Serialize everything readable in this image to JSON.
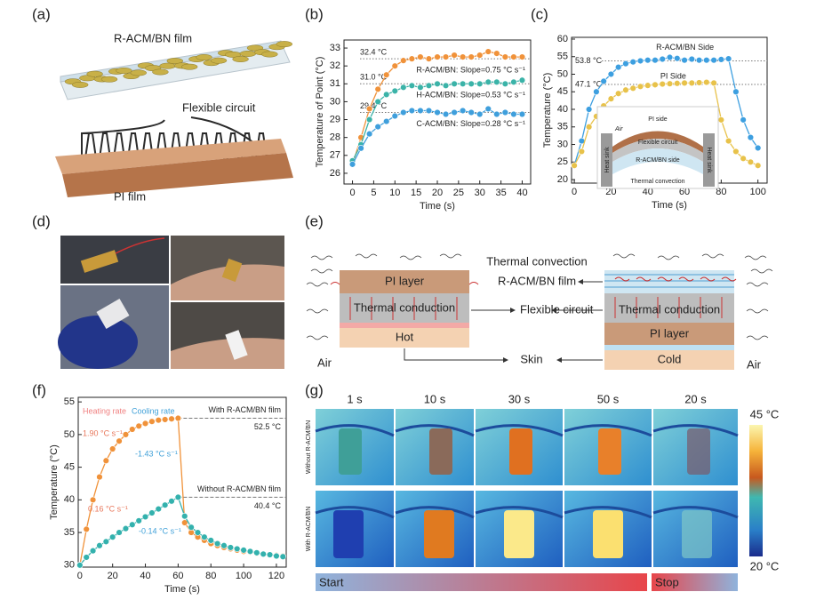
{
  "panels": {
    "labels": [
      "(a)",
      "(b)",
      "(c)",
      "(d)",
      "(e)",
      "(f)",
      "(g)"
    ],
    "a": {
      "film": "R-ACM/BN film",
      "circuit": "Flexible circuit",
      "pi": "PI film"
    },
    "c_inset": {
      "pi_side": "PI side",
      "air": "Air",
      "circuit": "Flexible circuit",
      "racm_side": "R-ACM/BN side",
      "sink_left": "Heat sink",
      "sink_right": "Heat sink",
      "convection": "Thermal convection"
    },
    "e": {
      "convection": "Thermal convection",
      "film": "R-ACM/BN film",
      "circuit": "Flexible circuit",
      "skin": "Skin",
      "left": {
        "layer": "PI layer",
        "conduction": "Thermal conduction",
        "base": "Hot",
        "air": "Air"
      },
      "right": {
        "layer": "PI layer",
        "conduction": "Thermal conduction",
        "base": "Cold",
        "air": "Air"
      }
    },
    "g": {
      "times": [
        "1 s",
        "10 s",
        "30 s",
        "50 s",
        "20 s"
      ],
      "rows": [
        "Without R-ACM/BN",
        "With R-ACM/BN"
      ],
      "max": "45 °C",
      "min": "20 °C",
      "start": "Start",
      "stop": "Stop"
    }
  },
  "chart_data": [
    {
      "type": "line",
      "xlabel": "Time (s)",
      "ylabel": "Temperature of Point (°C)",
      "x": [
        0,
        2,
        4,
        6,
        8,
        10,
        12,
        14,
        16,
        18,
        20,
        22,
        24,
        26,
        28,
        30,
        32,
        34,
        36,
        38,
        40
      ],
      "xlim": [
        -2,
        42
      ],
      "xticks": [
        0,
        5,
        10,
        15,
        20,
        25,
        30,
        35,
        40
      ],
      "ylim": [
        25.4,
        33.45
      ],
      "yticks": [
        26,
        27,
        28,
        29,
        30,
        31,
        32,
        33
      ],
      "series": [
        {
          "name": "R-ACM/BN: Slope=0.75 °C s⁻¹",
          "color": "#f0923a",
          "values": [
            26.5,
            28.0,
            29.6,
            30.7,
            31.5,
            32.0,
            32.3,
            32.4,
            32.5,
            32.4,
            32.5,
            32.5,
            32.6,
            32.5,
            32.5,
            32.6,
            32.8,
            32.7,
            32.5,
            32.5,
            32.5
          ]
        },
        {
          "name": "H-ACM/BN: Slope=0.53 °C s⁻¹",
          "color": "#3bb3a8",
          "values": [
            26.7,
            27.6,
            29.0,
            30.0,
            30.4,
            30.6,
            30.8,
            30.9,
            30.8,
            30.9,
            31.0,
            30.9,
            31.0,
            31.0,
            31.0,
            31.0,
            31.1,
            31.1,
            31.0,
            31.1,
            31.2
          ]
        },
        {
          "name": "C-ACM/BN: Slope=0.28 °C s⁻¹",
          "color": "#3f9fdc",
          "values": [
            26.5,
            27.4,
            28.2,
            28.6,
            28.9,
            29.2,
            29.4,
            29.5,
            29.5,
            29.5,
            29.4,
            29.3,
            29.4,
            29.5,
            29.4,
            29.3,
            29.6,
            29.3,
            29.4,
            29.3,
            29.3
          ]
        }
      ],
      "annotations": [
        {
          "text": "32.4 °C",
          "value": 32.4
        },
        {
          "text": "31.0 °C",
          "value": 31.0
        },
        {
          "text": "29.4 °C",
          "value": 29.4
        }
      ]
    },
    {
      "type": "line",
      "xlabel": "Time (s)",
      "ylabel": "Temperature (°C)",
      "x": [
        0,
        4,
        8,
        12,
        16,
        20,
        24,
        28,
        32,
        36,
        40,
        44,
        48,
        52,
        56,
        60,
        64,
        68,
        72,
        76,
        80,
        84,
        88,
        92,
        96,
        100
      ],
      "xlim": [
        -1.5,
        105
      ],
      "xticks": [
        0,
        20,
        40,
        60,
        80,
        100
      ],
      "ylim": [
        19,
        60.5
      ],
      "yticks": [
        20,
        25,
        30,
        35,
        40,
        45,
        50,
        55,
        60
      ],
      "series": [
        {
          "name": "R-ACM/BN Side",
          "color": "#3d9fe0",
          "values": [
            24,
            31,
            40,
            45,
            48,
            50,
            52,
            53,
            53.5,
            53.8,
            54,
            54,
            54.3,
            54.8,
            54.5,
            54,
            54.3,
            54,
            54,
            54,
            54.2,
            54.4,
            45,
            37,
            32,
            29
          ]
        },
        {
          "name": "PI Side",
          "color": "#e8c24a",
          "values": [
            24,
            28,
            35,
            38,
            41,
            43,
            44.5,
            45.5,
            46,
            46.5,
            46.8,
            47,
            47.2,
            47.3,
            47.4,
            47.5,
            47.5,
            47.6,
            47.7,
            47.5,
            37,
            31,
            28,
            26,
            25,
            24
          ]
        }
      ],
      "annotations": [
        {
          "text": "53.8 °C",
          "value": 53.8
        },
        {
          "text": "47.1 °C",
          "value": 47.1
        }
      ]
    },
    {
      "type": "line",
      "xlabel": "Time (s)",
      "ylabel": "Temperature (°C)",
      "x": [
        0,
        4,
        8,
        12,
        16,
        20,
        24,
        28,
        32,
        36,
        40,
        44,
        48,
        52,
        56,
        60,
        64,
        68,
        72,
        76,
        80,
        84,
        88,
        92,
        96,
        100,
        104,
        108,
        112,
        116,
        120,
        124
      ],
      "xlim": [
        -1,
        126
      ],
      "xticks": [
        0,
        20,
        40,
        60,
        80,
        100,
        120
      ],
      "ylim": [
        29.7,
        55.7
      ],
      "yticks": [
        30,
        35,
        40,
        45,
        50,
        55
      ],
      "series": [
        {
          "name": "With R-ACM/BN film",
          "color": "#f0923a",
          "values": [
            30,
            35.5,
            40,
            43.5,
            46,
            47.8,
            49,
            50,
            50.8,
            51.3,
            51.7,
            52,
            52.2,
            52.3,
            52.4,
            52.5,
            36.5,
            35,
            34.3,
            33.8,
            33.3,
            33,
            32.7,
            32.5,
            32.3,
            32.1,
            32,
            31.8,
            31.7,
            31.6,
            31.5,
            31.4
          ]
        },
        {
          "name": "Without R-ACM/BN film",
          "color": "#33b1ad",
          "values": [
            30,
            31.2,
            32.2,
            33,
            33.6,
            34.3,
            35,
            35.6,
            36.2,
            36.8,
            37.4,
            38,
            38.6,
            39.2,
            39.8,
            40.4,
            37.5,
            35.8,
            35,
            34.3,
            33.8,
            33.3,
            33,
            32.7,
            32.5,
            32.3,
            32.1,
            31.9,
            31.7,
            31.6,
            31.4,
            31.3
          ]
        }
      ],
      "annotations": [
        {
          "text": "52.5 °C",
          "value": 52.5
        },
        {
          "text": "40.4 °C",
          "value": 40.4
        }
      ],
      "notes": [
        {
          "text": "Heating rate",
          "color": "#f08080"
        },
        {
          "text": "Cooling rate",
          "color": "#3fa0d8"
        },
        {
          "text": "1.90 °C s⁻¹",
          "color": "#e8765a"
        },
        {
          "text": "-1.43 °C s⁻¹",
          "color": "#3fa0d8"
        },
        {
          "text": "0.16 °C s⁻¹",
          "color": "#e8765a"
        },
        {
          "text": "-0.14 °C s⁻¹",
          "color": "#3fa0d8"
        }
      ]
    }
  ]
}
